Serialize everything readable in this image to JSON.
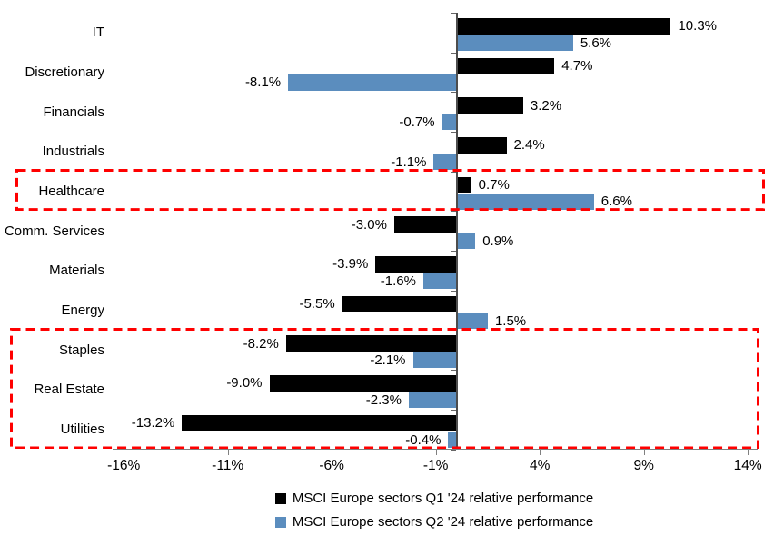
{
  "chart_data": {
    "type": "bar",
    "orientation": "horizontal",
    "title": "",
    "categories": [
      "IT",
      "Discretionary",
      "Financials",
      "Industrials",
      "Healthcare",
      "Comm. Services",
      "Materials",
      "Energy",
      "Staples",
      "Real Estate",
      "Utilities"
    ],
    "series": [
      {
        "name": "MSCI Europe sectors Q1 '24 relative performance",
        "color": "#000000",
        "values": [
          10.3,
          4.7,
          3.2,
          2.4,
          0.7,
          -3.0,
          -3.9,
          -5.5,
          -8.2,
          -9.0,
          -13.2
        ]
      },
      {
        "name": "MSCI Europe sectors Q2 '24 relative performance",
        "color": "#5B8DBE",
        "values": [
          5.6,
          -8.1,
          -0.7,
          -1.1,
          6.6,
          0.9,
          -1.6,
          1.5,
          -2.1,
          -2.3,
          -0.4
        ]
      }
    ],
    "value_label_format": "one_decimal_percent",
    "x_ticks": [
      "-16%",
      "-11%",
      "-6%",
      "-1%",
      "4%",
      "9%",
      "14%"
    ],
    "x_tick_values": [
      -16,
      -11,
      -6,
      -1,
      4,
      9,
      14
    ],
    "xlim": [
      -16.5,
      14.5
    ],
    "grid": false,
    "legend_position": "bottom",
    "highlight_boxes": [
      {
        "first_category": "Healthcare",
        "last_category": "Healthcare",
        "color": "#FF0000",
        "style": "dashed"
      },
      {
        "first_category": "Staples",
        "last_category": "Utilities",
        "color": "#FF0000",
        "style": "dashed"
      }
    ]
  }
}
